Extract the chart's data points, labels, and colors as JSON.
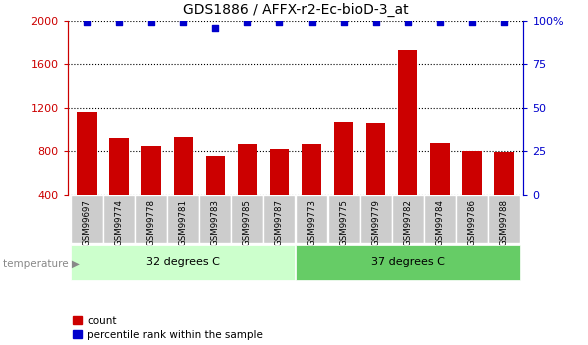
{
  "title": "GDS1886 / AFFX-r2-Ec-bioD-3_at",
  "samples": [
    "GSM99697",
    "GSM99774",
    "GSM99778",
    "GSM99781",
    "GSM99783",
    "GSM99785",
    "GSM99787",
    "GSM99773",
    "GSM99775",
    "GSM99779",
    "GSM99782",
    "GSM99784",
    "GSM99786",
    "GSM99788"
  ],
  "counts": [
    1165,
    920,
    845,
    930,
    755,
    870,
    820,
    870,
    1070,
    1060,
    1730,
    880,
    800,
    790
  ],
  "percentile_ranks": [
    99,
    99,
    99,
    99,
    96,
    99,
    99,
    99,
    99,
    99,
    99,
    99,
    99,
    99
  ],
  "group1_label": "32 degrees C",
  "group1_indices": [
    0,
    1,
    2,
    3,
    4,
    5,
    6
  ],
  "group2_label": "37 degrees C",
  "group2_indices": [
    7,
    8,
    9,
    10,
    11,
    12,
    13
  ],
  "group_attr": "temperature",
  "ylim_left": [
    400,
    2000
  ],
  "ylim_right": [
    0,
    100
  ],
  "yticks_left": [
    400,
    800,
    1200,
    1600,
    2000
  ],
  "yticks_right": [
    0,
    25,
    50,
    75,
    100
  ],
  "ytick_labels_right": [
    "0",
    "25",
    "50",
    "75",
    "100%"
  ],
  "bar_color": "#cc0000",
  "dot_color": "#0000cc",
  "group1_color": "#ccffcc",
  "group2_color": "#66cc66",
  "tick_label_bg": "#cccccc",
  "legend_count_label": "count",
  "legend_pct_label": "percentile rank within the sample",
  "bar_width": 0.6,
  "grid_linestyle": "dotted",
  "grid_color": "#000000",
  "dot_size": 16
}
